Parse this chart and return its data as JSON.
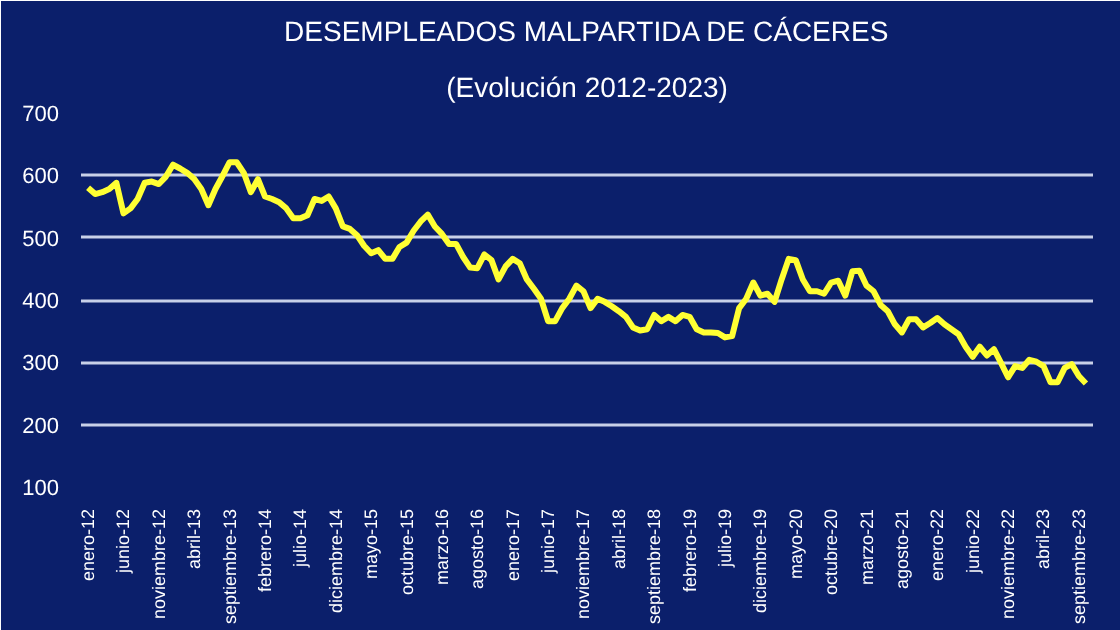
{
  "chart_data": {
    "type": "line",
    "title": "DESEMPLEADOS MALPARTIDA DE CÁCERES",
    "subtitle": "(Evolución 2012-2023)",
    "categories": [
      "enero-12",
      null,
      null,
      null,
      null,
      "junio-12",
      null,
      null,
      null,
      null,
      "noviembre-12",
      null,
      null,
      null,
      null,
      "abril-13",
      null,
      null,
      null,
      null,
      "septiembre-13",
      null,
      null,
      null,
      null,
      "febrero-14",
      null,
      null,
      null,
      null,
      "julio-14",
      null,
      null,
      null,
      null,
      "diciembre-14",
      null,
      null,
      null,
      null,
      "mayo-15",
      null,
      null,
      null,
      null,
      "octubre-15",
      null,
      null,
      null,
      null,
      "marzo-16",
      null,
      null,
      null,
      null,
      "agosto-16",
      null,
      null,
      null,
      null,
      "enero-17",
      null,
      null,
      null,
      null,
      "junio-17",
      null,
      null,
      null,
      null,
      "noviembre-17",
      null,
      null,
      null,
      null,
      "abril-18",
      null,
      null,
      null,
      null,
      "septiembre-18",
      null,
      null,
      null,
      null,
      "febrero-19",
      null,
      null,
      null,
      null,
      "julio-19",
      null,
      null,
      null,
      null,
      "diciembre-19",
      null,
      null,
      null,
      null,
      "mayo-20",
      null,
      null,
      null,
      null,
      "octubre-20",
      null,
      null,
      null,
      null,
      "marzo-21",
      null,
      null,
      null,
      null,
      "agosto-21",
      null,
      null,
      null,
      null,
      "enero-22",
      null,
      null,
      null,
      null,
      "junio-22",
      null,
      null,
      null,
      null,
      "noviembre-22",
      null,
      null,
      null,
      null,
      "abril-23",
      null,
      null,
      null,
      null,
      "septiembre-23",
      null
    ],
    "series": [
      {
        "color": "#ffff33",
        "values": [
          580,
          570,
          573,
          578,
          588,
          539,
          547,
          562,
          588,
          590,
          586,
          598,
          617,
          611,
          604,
          594,
          578,
          552,
          578,
          599,
          621,
          621,
          604,
          573,
          594,
          566,
          562,
          557,
          547,
          531,
          531,
          536,
          562,
          559,
          566,
          547,
          518,
          514,
          504,
          487,
          475,
          480,
          466,
          466,
          485,
          492,
          511,
          526,
          537,
          518,
          506,
          490,
          490,
          469,
          452,
          451,
          473,
          464,
          433,
          454,
          466,
          459,
          433,
          418,
          402,
          366,
          366,
          387,
          402,
          423,
          414,
          387,
          402,
          397,
          390,
          382,
          373,
          356,
          351,
          353,
          376,
          366,
          373,
          366,
          376,
          373,
          353,
          348,
          348,
          347,
          340,
          342,
          387,
          402,
          428,
          407,
          410,
          397,
          433,
          466,
          464,
          433,
          414,
          414,
          410,
          428,
          431,
          407,
          446,
          447,
          423,
          414,
          392,
          382,
          361,
          348,
          369,
          369,
          356,
          363,
          371,
          361,
          353,
          345,
          325,
          309,
          325,
          311,
          321,
          299,
          276,
          294,
          291,
          304,
          301,
          294,
          268,
          268,
          291,
          297,
          278,
          266
        ]
      }
    ],
    "ylim": [
      100,
      700
    ],
    "yticks": [
      100,
      200,
      300,
      400,
      500,
      600,
      700
    ],
    "grid": "y"
  }
}
